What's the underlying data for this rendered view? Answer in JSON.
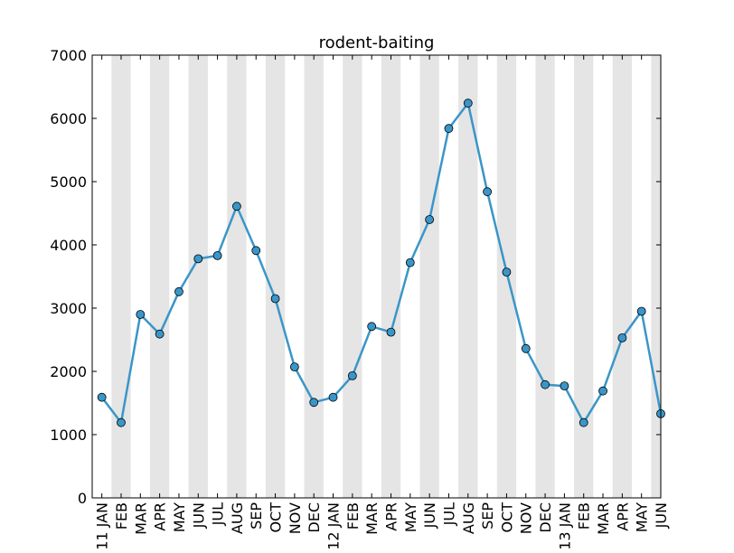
{
  "chart_data": {
    "type": "line",
    "title": "rodent-baiting",
    "xlabel": "",
    "ylabel": "",
    "ylim": [
      0,
      7000
    ],
    "yticks": [
      0,
      1000,
      2000,
      3000,
      4000,
      5000,
      6000,
      7000
    ],
    "categories": [
      "11 JAN",
      "FEB",
      "MAR",
      "APR",
      "MAY",
      "JUN",
      "JUL",
      "AUG",
      "SEP",
      "OCT",
      "NOV",
      "DEC",
      "12 JAN",
      "FEB",
      "MAR",
      "APR",
      "MAY",
      "JUN",
      "JUL",
      "AUG",
      "SEP",
      "OCT",
      "NOV",
      "DEC",
      "13 JAN",
      "FEB",
      "MAR",
      "APR",
      "MAY",
      "JUN"
    ],
    "values": [
      1590,
      1190,
      2900,
      2590,
      3260,
      3780,
      3830,
      4610,
      3910,
      3150,
      2070,
      1510,
      1590,
      1930,
      2710,
      2620,
      3720,
      4400,
      5840,
      6240,
      4840,
      3570,
      2360,
      1790,
      1770,
      1190,
      1690,
      2530,
      2950,
      1330
    ],
    "line_color": "#3a96c8",
    "band_color": "#e5e5e5",
    "alternating_bands": true,
    "grid": false
  }
}
